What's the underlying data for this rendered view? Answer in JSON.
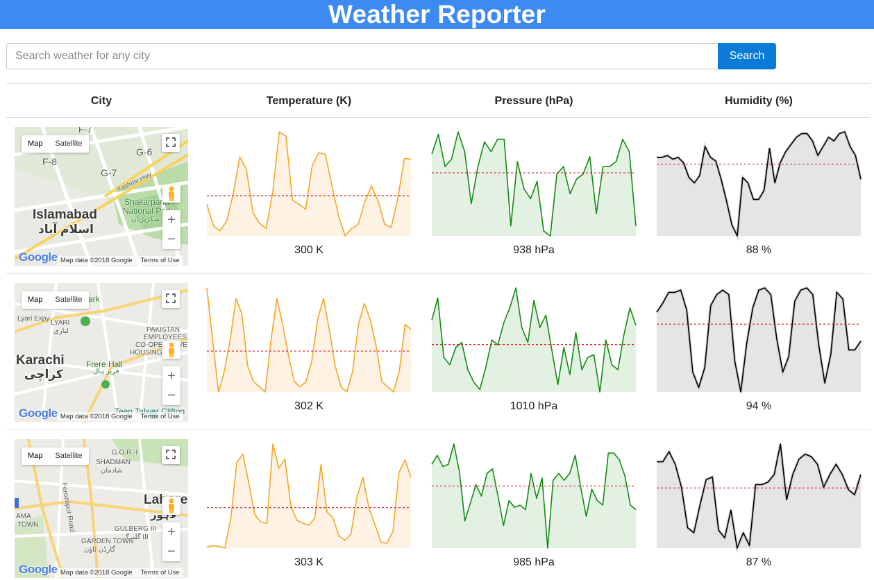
{
  "app": {
    "title": "Weather Reporter"
  },
  "search": {
    "placeholder": "Search weather for any city",
    "value": "",
    "button_label": "Search"
  },
  "table": {
    "headers": [
      "City",
      "Temperature (K)",
      "Pressure (hPa)",
      "Humidity (%)"
    ]
  },
  "map_controls": {
    "map_label": "Map",
    "satellite_label": "Satellite",
    "zoom_in": "+",
    "zoom_out": "−",
    "logo_text": "Google",
    "attribution": "Map data ©2018 Google",
    "terms": "Terms of Use"
  },
  "colors": {
    "header": "#3d8af1",
    "button": "#0a7bd6",
    "temperature_line": "#f5a623",
    "temperature_fill": "#fdf2e3",
    "pressure_line": "#138a13",
    "pressure_fill": "#e3f1e3",
    "humidity_line": "#000000",
    "humidity_fill": "#e5e5e5",
    "average_line": "#e0232d"
  },
  "rows": [
    {
      "city": {
        "name": "Islamabad",
        "name_urdu": "اسلام آباد",
        "labels": [
          "F-7",
          "F-8",
          "G-6",
          "G-7",
          "Kashmir Hwy",
          "Shakarparian",
          "National Park",
          "شکرپڑیاں"
        ]
      },
      "temperature": {
        "value_label": "300 K",
        "series": [
          295.8,
          293.2,
          292.6,
          293.8,
          297.0,
          301.5,
          300.0,
          294.8,
          293.5,
          292.9,
          297.2,
          304.5,
          304.0,
          296.3,
          295.8,
          295.2,
          300.4,
          302.0,
          301.8,
          298.0,
          294.4,
          292.0,
          292.9,
          293.4,
          296.1,
          298.0,
          296.2,
          293.4,
          293.0,
          296.5,
          301.3,
          301.2
        ]
      },
      "pressure": {
        "value_label": "938 hPa",
        "series": [
          1003,
          1011,
          998,
          1001,
          1012,
          1004,
          983,
          998,
          1008,
          1004,
          1009,
          1009,
          974,
          1000,
          989,
          985,
          992,
          972,
          970,
          995,
          998,
          987,
          993,
          995,
          1002,
          979,
          998,
          998,
          1000,
          1009,
          1004,
          974
        ]
      },
      "humidity": {
        "value_label": "88 %",
        "series": [
          64,
          64,
          65,
          63,
          64,
          61,
          53,
          50,
          54,
          70,
          64,
          62,
          52,
          40,
          27,
          21,
          53,
          50,
          41,
          41,
          46,
          69,
          50,
          61,
          67,
          71,
          75,
          77,
          77,
          73,
          65,
          70,
          75,
          73,
          77,
          78,
          70,
          65,
          52
        ]
      }
    },
    {
      "city": {
        "name": "Karachi",
        "name_urdu": "کراچی",
        "labels": [
          "Park",
          "Lyari Expy",
          "LYARI",
          "لیاری",
          "PAKISTAN",
          "EMPLOYEES",
          "CO-OPERATIVE",
          "HOUSING",
          "Frere Hall",
          "فریر ہال",
          "Teen Talwar Clifton"
        ]
      },
      "temperature": {
        "value_label": "302 K",
        "series": [
          312,
          302,
          292,
          296,
          302,
          310,
          307,
          297,
          294,
          293,
          292,
          302,
          310,
          305,
          299,
          294,
          293,
          294,
          298,
          306,
          310,
          304,
          297,
          293,
          292,
          296,
          305,
          309,
          306,
          301,
          294,
          293,
          292,
          296,
          305,
          304
        ]
      },
      "pressure": {
        "value_label": "1010 hPa",
        "series": [
          1012,
          1021,
          997,
          994,
          1001,
          1003,
          992,
          987,
          984,
          993,
          1004,
          1002,
          1011,
          1017,
          1025,
          1009,
          1003,
          1020,
          1009,
          1014,
          1000,
          986,
          1001,
          990,
          1007,
          992,
          997,
          998,
          983,
          1004,
          994,
          992,
          1006,
          1017,
          1010
        ]
      },
      "humidity": {
        "value_label": "94 %",
        "series": [
          87,
          91,
          96,
          96,
          97,
          88,
          60,
          53,
          62,
          90,
          95,
          97,
          95,
          65,
          51,
          73,
          89,
          97,
          98,
          95,
          75,
          60,
          67,
          92,
          97,
          98,
          95,
          72,
          55,
          68,
          96,
          93,
          70,
          70,
          74
        ]
      }
    },
    {
      "city": {
        "name": "Lahore",
        "name_urdu": "لاہور",
        "labels": [
          "G.O.R.-I",
          "SHADMAN",
          "شادمان",
          "Ferozepur Road",
          "GULBERG III",
          "گلبرگ III",
          "GARDEN TOWN",
          "گارڈن ٹاؤن",
          "AMA",
          "TOWN"
        ]
      },
      "temperature": {
        "value_label": "303 K",
        "series": [
          292.5,
          292.7,
          292.6,
          292.3,
          297.3,
          306.5,
          307.8,
          303.0,
          297.8,
          296.6,
          296.4,
          309.5,
          305.5,
          307.0,
          299.2,
          296.9,
          296.4,
          296.1,
          297.3,
          306.1,
          298.3,
          297.3,
          294.3,
          293.6,
          294.6,
          300.7,
          304.0,
          298.9,
          296.2,
          293.3,
          293.1,
          295.1,
          304.8,
          306.9,
          304.0
        ]
      },
      "pressure": {
        "value_label": "985 hPa",
        "series": [
          1004,
          1008,
          1003,
          1004,
          1013,
          1001,
          979,
          987,
          995,
          990,
          1000,
          1002,
          990,
          977,
          988,
          985,
          986,
          984,
          1000,
          989,
          998,
          967,
          997,
          1000,
          997,
          1000,
          1008,
          994,
          981,
          993,
          988,
          986,
          1009,
          1009,
          1006,
          999,
          986,
          984
        ]
      },
      "humidity": {
        "value_label": "87 %",
        "series": [
          85,
          85,
          89,
          84,
          75,
          59,
          57,
          68,
          78,
          79,
          58,
          55,
          66,
          51,
          57,
          52,
          76,
          76,
          77,
          80,
          92,
          70,
          80,
          86,
          88,
          87,
          84,
          75,
          80,
          84,
          80,
          74,
          72,
          80
        ]
      }
    }
  ]
}
